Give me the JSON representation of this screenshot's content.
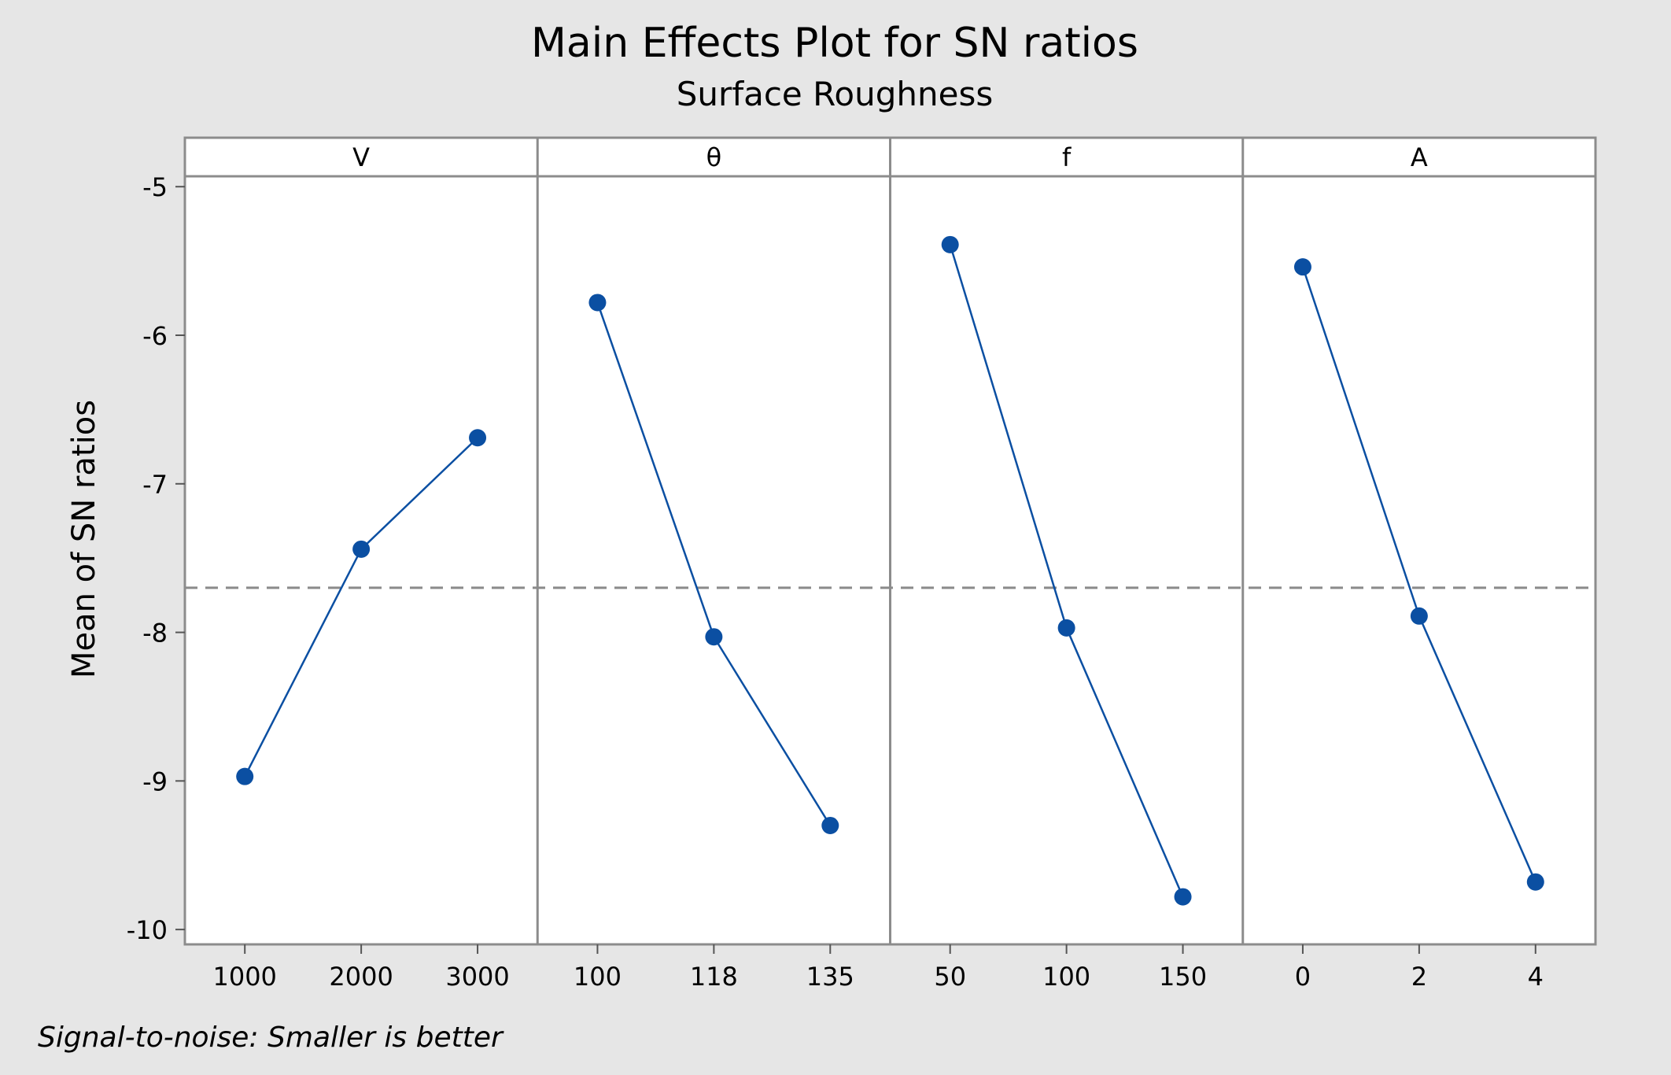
{
  "chart_data": {
    "type": "line",
    "title": "Main Effects Plot for SN ratios",
    "subtitle": "Surface Roughness",
    "ylabel": "Mean of SN ratios",
    "footnote": "Signal-to-noise: Smaller is better",
    "ylim": [
      -10.1,
      -4.93
    ],
    "yticks": [
      -5,
      -6,
      -7,
      -8,
      -9,
      -10
    ],
    "reference_line": -7.7,
    "colors": {
      "series": "#0b4fa2",
      "reference": "#8a8a8a",
      "background": "#e6e6e6",
      "panel": "#ffffff"
    },
    "panels": [
      {
        "name": "V",
        "x": [
          "1000",
          "2000",
          "3000"
        ],
        "y": [
          -8.97,
          -7.44,
          -6.69
        ]
      },
      {
        "name": "θ",
        "x": [
          "100",
          "118",
          "135"
        ],
        "y": [
          -5.78,
          -8.03,
          -9.3
        ]
      },
      {
        "name": "f",
        "x": [
          "50",
          "100",
          "150"
        ],
        "y": [
          -5.39,
          -7.97,
          -9.78
        ]
      },
      {
        "name": "A",
        "x": [
          "0",
          "2",
          "4"
        ],
        "y": [
          -5.54,
          -7.89,
          -9.68
        ]
      }
    ]
  }
}
